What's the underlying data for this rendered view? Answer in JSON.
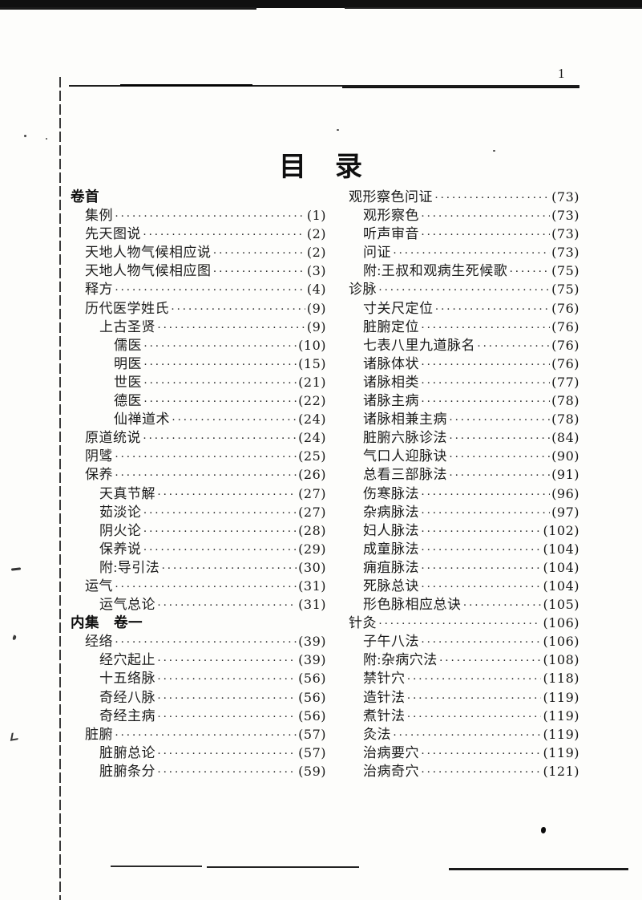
{
  "page": {
    "number": "1",
    "title": "目　录"
  },
  "toc": {
    "left_column": [
      {
        "label": "卷首",
        "page": "",
        "level": 0
      },
      {
        "label": "集例",
        "page": "(1)",
        "level": 1
      },
      {
        "label": "先天图说",
        "page": "(2)",
        "level": 1
      },
      {
        "label": "天地人物气候相应说",
        "page": "(2)",
        "level": 1
      },
      {
        "label": "天地人物气候相应图",
        "page": "(3)",
        "level": 1
      },
      {
        "label": "释方",
        "page": "(4)",
        "level": 1
      },
      {
        "label": "历代医学姓氏",
        "page": "(9)",
        "level": 1
      },
      {
        "label": "上古圣贤",
        "page": "(9)",
        "level": 2
      },
      {
        "label": "儒医",
        "page": "(10)",
        "level": 3
      },
      {
        "label": "明医",
        "page": "(15)",
        "level": 3
      },
      {
        "label": "世医",
        "page": "(21)",
        "level": 3
      },
      {
        "label": "德医",
        "page": "(22)",
        "level": 3
      },
      {
        "label": "仙禅道术",
        "page": "(24)",
        "level": 3
      },
      {
        "label": "原道统说",
        "page": "(24)",
        "level": 1
      },
      {
        "label": "阴骘",
        "page": "(25)",
        "level": 1
      },
      {
        "label": "保养",
        "page": "(26)",
        "level": 1
      },
      {
        "label": "天真节解",
        "page": "(27)",
        "level": 2
      },
      {
        "label": "茹淡论",
        "page": "(27)",
        "level": 2
      },
      {
        "label": "阴火论",
        "page": "(28)",
        "level": 2
      },
      {
        "label": "保养说",
        "page": "(29)",
        "level": 2
      },
      {
        "label": "附:导引法",
        "page": "(30)",
        "level": 2
      },
      {
        "label": "运气",
        "page": "(31)",
        "level": 1
      },
      {
        "label": "运气总论",
        "page": "(31)",
        "level": 2
      },
      {
        "label": "内集　卷一",
        "page": "",
        "level": 0
      },
      {
        "label": "经络",
        "page": "(39)",
        "level": 1
      },
      {
        "label": "经穴起止",
        "page": "(39)",
        "level": 2
      },
      {
        "label": "十五络脉",
        "page": "(56)",
        "level": 2
      },
      {
        "label": "奇经八脉",
        "page": "(56)",
        "level": 2
      },
      {
        "label": "奇经主病",
        "page": "(56)",
        "level": 2
      },
      {
        "label": "脏腑",
        "page": "(57)",
        "level": 1
      },
      {
        "label": "脏腑总论",
        "page": "(57)",
        "level": 2
      },
      {
        "label": "脏腑条分",
        "page": "(59)",
        "level": 2
      }
    ],
    "right_column": [
      {
        "label": "观形察色问证",
        "page": "(73)",
        "level": 1
      },
      {
        "label": "观形察色",
        "page": "(73)",
        "level": 2
      },
      {
        "label": "听声审音",
        "page": "(73)",
        "level": 2
      },
      {
        "label": "问证",
        "page": "(73)",
        "level": 2
      },
      {
        "label": "附:王叔和观病生死候歌",
        "page": "(75)",
        "level": 2
      },
      {
        "label": "诊脉",
        "page": "(75)",
        "level": 1
      },
      {
        "label": "寸关尺定位",
        "page": "(76)",
        "level": 2
      },
      {
        "label": "脏腑定位",
        "page": "(76)",
        "level": 2
      },
      {
        "label": "七表八里九道脉名",
        "page": "(76)",
        "level": 2
      },
      {
        "label": "诸脉体状",
        "page": "(76)",
        "level": 2
      },
      {
        "label": "诸脉相类",
        "page": "(77)",
        "level": 2
      },
      {
        "label": "诸脉主病",
        "page": "(78)",
        "level": 2
      },
      {
        "label": "诸脉相兼主病",
        "page": "(78)",
        "level": 2
      },
      {
        "label": "脏腑六脉诊法",
        "page": "(84)",
        "level": 2
      },
      {
        "label": "气口人迎脉诀",
        "page": "(90)",
        "level": 2
      },
      {
        "label": "总看三部脉法",
        "page": "(91)",
        "level": 2
      },
      {
        "label": "伤寒脉法",
        "page": "(96)",
        "level": 2
      },
      {
        "label": "杂病脉法",
        "page": "(97)",
        "level": 2
      },
      {
        "label": "妇人脉法",
        "page": "(102)",
        "level": 2
      },
      {
        "label": "成童脉法",
        "page": "(104)",
        "level": 2
      },
      {
        "label": "痈疽脉法",
        "page": "(104)",
        "level": 2
      },
      {
        "label": "死脉总诀",
        "page": "(104)",
        "level": 2
      },
      {
        "label": "形色脉相应总诀",
        "page": "(105)",
        "level": 2
      },
      {
        "label": "针灸",
        "page": "(106)",
        "level": 1
      },
      {
        "label": "子午八法",
        "page": "(106)",
        "level": 2
      },
      {
        "label": "附:杂病穴法",
        "page": "(108)",
        "level": 2
      },
      {
        "label": "禁针穴",
        "page": "(118)",
        "level": 2
      },
      {
        "label": "造针法",
        "page": "(119)",
        "level": 2
      },
      {
        "label": "煮针法",
        "page": "(119)",
        "level": 2
      },
      {
        "label": "灸法",
        "page": "(119)",
        "level": 2
      },
      {
        "label": "治病要穴",
        "page": "(119)",
        "level": 2
      },
      {
        "label": "治病奇穴",
        "page": "(121)",
        "level": 2
      }
    ]
  }
}
